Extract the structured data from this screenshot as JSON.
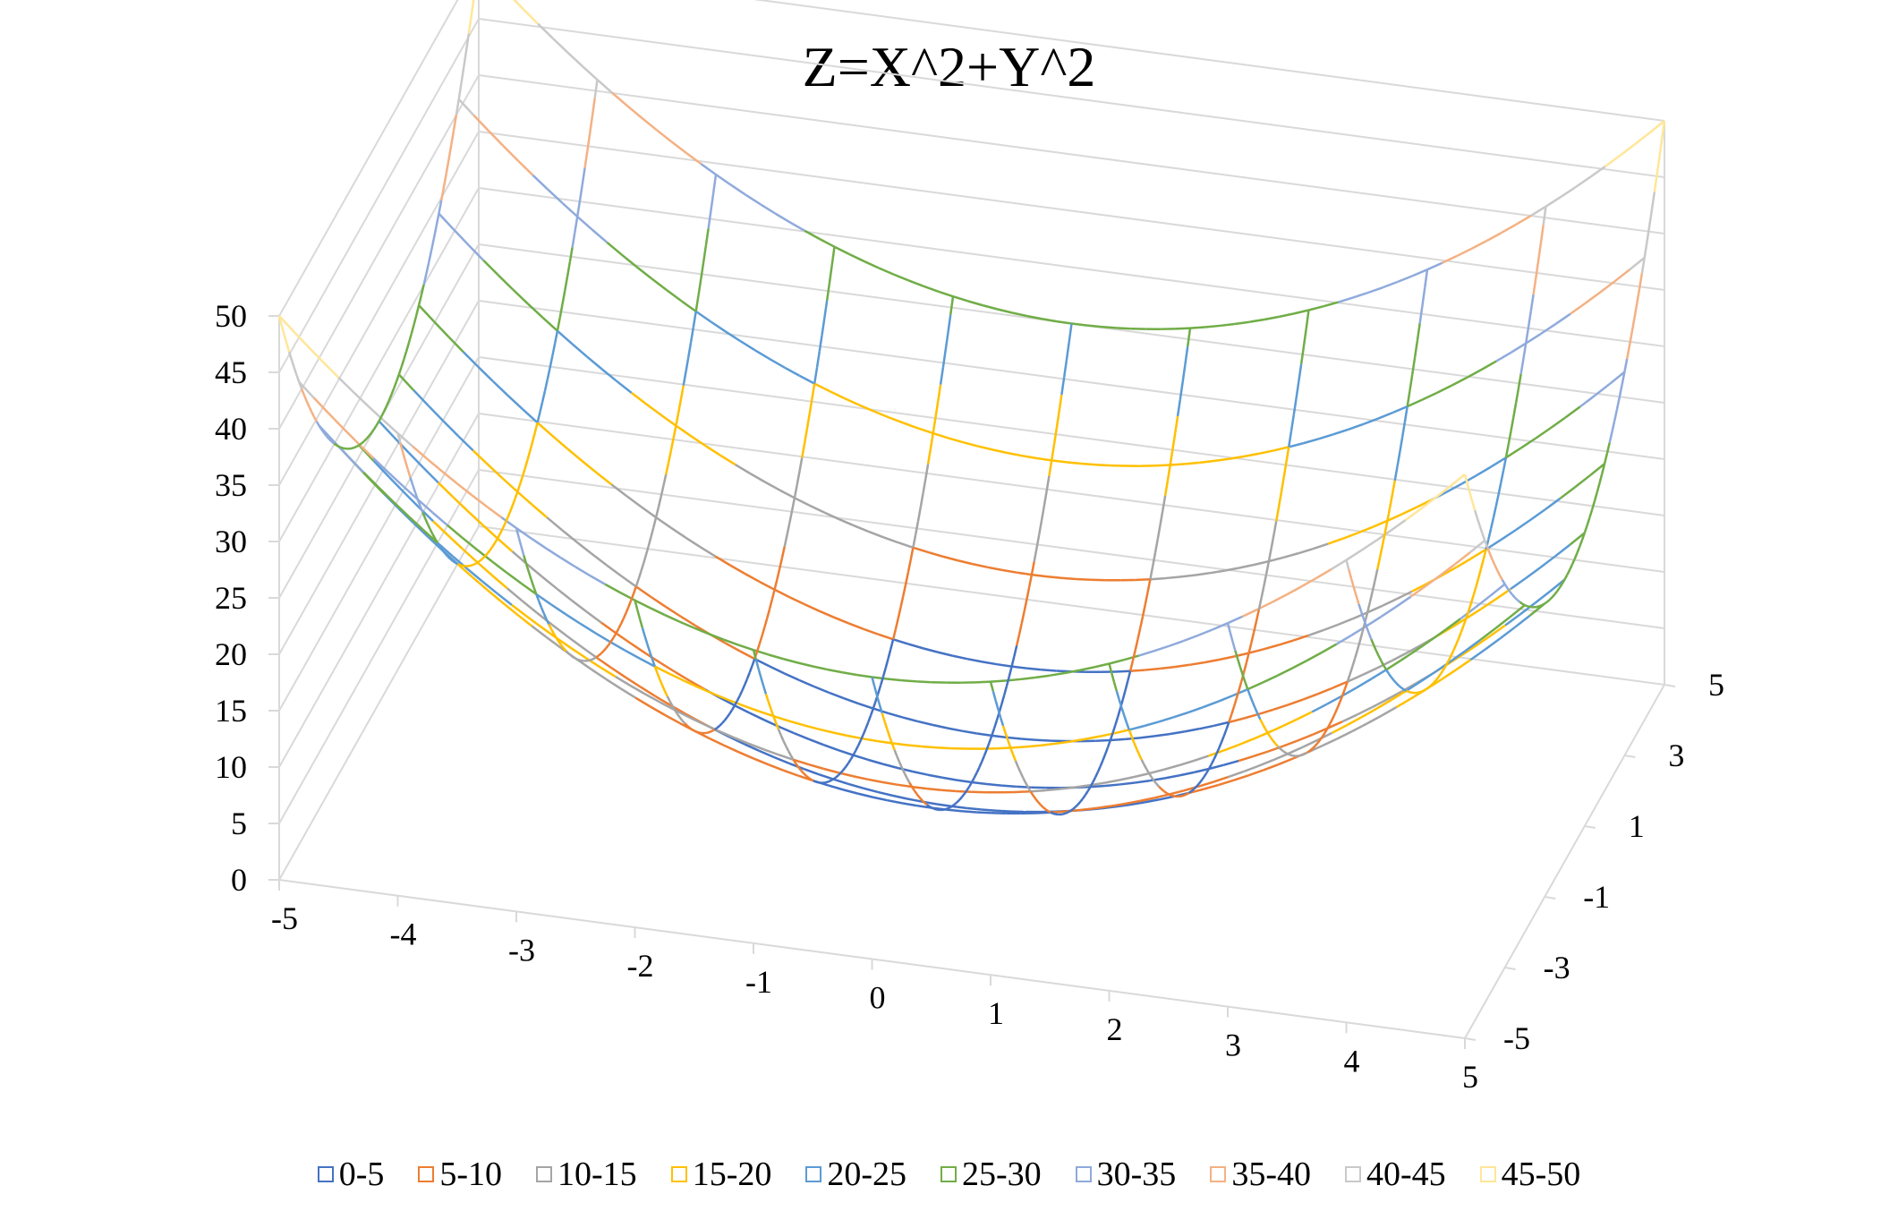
{
  "chart_data": {
    "type": "surface-wireframe",
    "title": "Z=X^2+Y^2",
    "x_ticks": [
      "-5",
      "-4",
      "-3",
      "-2",
      "-1",
      "0",
      "1",
      "2",
      "3",
      "4",
      "5"
    ],
    "y_ticks": [
      "-5",
      "-3",
      "-1",
      "1",
      "3",
      "5"
    ],
    "z_ticks": [
      "0",
      "5",
      "10",
      "15",
      "20",
      "25",
      "30",
      "35",
      "40",
      "45",
      "50"
    ],
    "x_range": [
      -5,
      5
    ],
    "y_range": [
      -5,
      5
    ],
    "z_range": [
      0,
      50
    ],
    "x_values": [
      -5,
      -4,
      -3,
      -2,
      -1,
      0,
      1,
      2,
      3,
      4,
      5
    ],
    "y_values": [
      -5,
      -4,
      -3,
      -2,
      -1,
      0,
      1,
      2,
      3,
      4,
      5
    ],
    "formula": "z = x^2 + y^2",
    "grid": true,
    "legend_position": "bottom",
    "bands": [
      {
        "name": "0-5",
        "min": 0,
        "max": 5,
        "color": "#4472C4"
      },
      {
        "name": "5-10",
        "min": 5,
        "max": 10,
        "color": "#ED7D31"
      },
      {
        "name": "10-15",
        "min": 10,
        "max": 15,
        "color": "#A5A5A5"
      },
      {
        "name": "15-20",
        "min": 15,
        "max": 20,
        "color": "#FFC000"
      },
      {
        "name": "20-25",
        "min": 20,
        "max": 25,
        "color": "#5B9BD5"
      },
      {
        "name": "25-30",
        "min": 25,
        "max": 30,
        "color": "#70AD47"
      },
      {
        "name": "30-35",
        "min": 30,
        "max": 35,
        "color": "#8FAADC"
      },
      {
        "name": "35-40",
        "min": 35,
        "max": 40,
        "color": "#F4B183"
      },
      {
        "name": "40-45",
        "min": 40,
        "max": 45,
        "color": "#C9C9C9"
      },
      {
        "name": "45-50",
        "min": 45,
        "max": 50,
        "color": "#FFE699"
      }
    ]
  }
}
